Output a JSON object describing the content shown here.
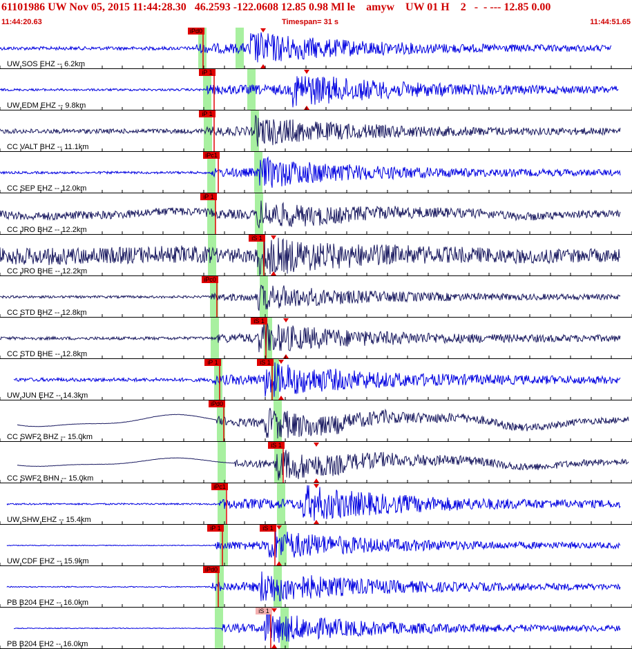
{
  "header": {
    "title": "61101986 UW Nov 05, 2015 11:44:28.30   46.2593 -122.0608 12.85 0.98 Ml le    amyw    UW 01 H    2   -  - --- 12.85 0.00",
    "start_time": "11:44:20.63",
    "end_time": "11:44:51.65",
    "timespan_label": "Timespan=  31 s"
  },
  "colors": {
    "title": "#d00000",
    "trace_blue": "#0000e0",
    "trace_navy": "#1a1a60",
    "window_green": "#a8f0a0",
    "pick_red": "#e00000",
    "pick_pink": "#f5b0b0",
    "tick": "#000000"
  },
  "channels": [
    {
      "label": "UW SOS EHZ -- 6.2km",
      "color": "blue",
      "p": {
        "text": "iPd0",
        "t": 0.0,
        "x": 284
      },
      "s": null,
      "arrival_tri": {
        "x": 381
      },
      "green": [
        293,
        347
      ],
      "amp": 26,
      "lead": 0.15,
      "noise": 0.02,
      "long": 0.0,
      "start": 0,
      "end": 885
    },
    {
      "label": "UW EDM EHZ -- 9.8km",
      "color": "blue",
      "p": {
        "text": "iP 1",
        "x": 300
      },
      "s": null,
      "arrival_tri": {
        "x": 444
      },
      "green": [
        300,
        364
      ],
      "amp": 26,
      "lead": 0.08,
      "noise": 0.05,
      "long": 0.0,
      "start": 0,
      "end": 895
    },
    {
      "label": "CC VALT BHZ -- 11.1km",
      "color": "navy",
      "p": {
        "text": "iP 1",
        "x": 300
      },
      "s": null,
      "arrival_tri": null,
      "green": [
        301,
        369
      ],
      "amp": 22,
      "lead": 0.2,
      "noise": 0.12,
      "long": 0.0,
      "start": 0,
      "end": 898
    },
    {
      "label": "CC SEP EHZ -- 12.0km",
      "color": "blue",
      "p": {
        "text": "iPc1",
        "x": 306
      },
      "s": null,
      "arrival_tri": null,
      "green": [
        306,
        374
      ],
      "amp": 24,
      "lead": 0.1,
      "noise": 0.04,
      "long": 0.0,
      "start": 0,
      "end": 898
    },
    {
      "label": "CC JRO BHZ -- 12.2km",
      "color": "navy",
      "p": {
        "text": "iP 1",
        "x": 302
      },
      "s": null,
      "arrival_tri": null,
      "green": [
        306,
        375
      ],
      "amp": 20,
      "lead": 0.4,
      "noise": 0.2,
      "long": 0.25,
      "start": 0,
      "end": 898
    },
    {
      "label": "CC JRO BHE -- 12.2km",
      "color": "navy",
      "p": null,
      "s": {
        "text": "iS 1",
        "x": 372
      },
      "arrival_tri": {
        "x": 396
      },
      "green": [
        307,
        378
      ],
      "amp": 26,
      "lead": 0.6,
      "noise": 0.4,
      "long": 0.1,
      "start": 0,
      "end": 898
    },
    {
      "label": "CC STD BHZ -- 12.8km",
      "color": "navy",
      "p": {
        "text": "iPc0",
        "x": 304
      },
      "s": null,
      "arrival_tri": null,
      "green": [
        310,
        382
      ],
      "amp": 20,
      "lead": 0.12,
      "noise": 0.06,
      "long": 0.0,
      "start": 0,
      "end": 898
    },
    {
      "label": "CC STD BHE -- 12.8km",
      "color": "navy",
      "p": null,
      "s": {
        "text": "iS 1",
        "x": 375
      },
      "arrival_tri": {
        "x": 414
      },
      "green": [
        311,
        388
      ],
      "amp": 24,
      "lead": 0.12,
      "noise": 0.07,
      "long": 0.0,
      "start": 0,
      "end": 898
    },
    {
      "label": "UW JUN EHZ -- 14.3km",
      "color": "blue",
      "p": {
        "text": "iP 1",
        "x": 308
      },
      "s": {
        "text": "iS 1",
        "x": 384
      },
      "arrival_tri": {
        "x": 407
      },
      "green": [
        316,
        398
      ],
      "amp": 26,
      "lead": 0.12,
      "noise": 0.1,
      "long": 0.0,
      "start": 20,
      "end": 898
    },
    {
      "label": "CC SWF2 BHZ -- 15.0km",
      "color": "navy",
      "p": {
        "text": "iPd0",
        "x": 314
      },
      "s": null,
      "arrival_tri": null,
      "green": [
        320,
        402
      ],
      "amp": 24,
      "lead": 0.0,
      "noise": 0.03,
      "long": 0.5,
      "start": 25,
      "end": 910
    },
    {
      "label": "CC SWF2 BHN -- 15.0km",
      "color": "navy",
      "p": null,
      "s": {
        "text": "iS 1",
        "x": 400
      },
      "arrival_tri": {
        "x": 458
      },
      "green": [
        321,
        403
      ],
      "amp": 24,
      "lead": 0.0,
      "noise": 0.03,
      "long": 0.35,
      "start": 25,
      "end": 910
    },
    {
      "label": "UW SHW EHZ -- 15.4km",
      "color": "blue",
      "p": {
        "text": "iPc1",
        "x": 318
      },
      "s": null,
      "arrival_tri": {
        "x": 458
      },
      "green": [
        321,
        407
      ],
      "amp": 28,
      "lead": 0.05,
      "noise": 0.04,
      "long": 0.0,
      "start": 10,
      "end": 898
    },
    {
      "label": "UW CDF EHZ -- 15.9km",
      "color": "blue",
      "p": {
        "text": "iP 1",
        "x": 312
      },
      "s": {
        "text": "iS 1",
        "x": 388
      },
      "arrival_tri": {
        "x": 404
      },
      "green": [
        324,
        409
      ],
      "amp": 24,
      "lead": 0.03,
      "noise": 0.02,
      "long": 0.0,
      "start": 10,
      "end": 898
    },
    {
      "label": "PB B204 EHZ -- 16.0km",
      "color": "blue",
      "p": {
        "text": "iPd0",
        "x": 306
      },
      "s": null,
      "arrival_tri": null,
      "green": [
        318,
        402
      ],
      "amp": 26,
      "lead": 0.04,
      "noise": 0.02,
      "long": 0.0,
      "start": 10,
      "end": 898
    },
    {
      "label": "PB B204 EH2 -- 16.0km",
      "color": "blue",
      "p": null,
      "s": {
        "text": "iS 1",
        "x": 382,
        "pink": true
      },
      "arrival_tri": {
        "x": 397
      },
      "green": [
        317,
        412
      ],
      "amp": 24,
      "lead": 0.03,
      "noise": 0.02,
      "long": 0.0,
      "start": 20,
      "end": 898
    }
  ]
}
